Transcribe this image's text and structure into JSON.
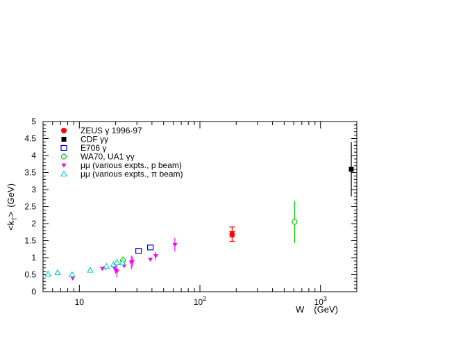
{
  "chart_data": {
    "type": "scatter",
    "xscale": "log",
    "xlim": [
      5,
      2000
    ],
    "ylim": [
      0,
      5
    ],
    "xlabel_main": "W",
    "xlabel_unit": "(GeV)",
    "ylabel": "<k_T> (GeV)",
    "ylabel_parts": {
      "open": "<k",
      "sub": "T",
      "close": ">",
      "unit": "(GeV)"
    },
    "x_ticks": [
      {
        "value": 10,
        "base": "10",
        "exp": ""
      },
      {
        "value": 100,
        "base": "10",
        "exp": "2"
      },
      {
        "value": 1000,
        "base": "10",
        "exp": "3"
      }
    ],
    "y_ticks": [
      "0",
      "0.5",
      "1",
      "1.5",
      "2",
      "2.5",
      "3",
      "3.5",
      "4",
      "4.5",
      "5"
    ],
    "grid": false,
    "legend_position": "top-left",
    "series": [
      {
        "name": "ZEUS γ 1996-97",
        "marker": "filled-circle",
        "color": "#ff0000",
        "points": [
          {
            "x": 185,
            "y": 1.69,
            "yerr_lo": 0.21,
            "yerr_hi": 0.21,
            "inner_lo": 0.08,
            "inner_hi": 0.08
          }
        ]
      },
      {
        "name": "CDF γγ",
        "marker": "filled-square",
        "color": "#000000",
        "points": [
          {
            "x": 1800,
            "y": 3.6,
            "yerr_lo": 0.8,
            "yerr_hi": 0.8
          }
        ]
      },
      {
        "name": "E706 γ",
        "marker": "open-square",
        "color": "#0000cc",
        "points": [
          {
            "x": 31,
            "y": 1.2,
            "yerr_lo": 0.08,
            "yerr_hi": 0.08
          },
          {
            "x": 38.8,
            "y": 1.3,
            "yerr_lo": 0.08,
            "yerr_hi": 0.08
          }
        ]
      },
      {
        "name": "WA70, UA1 γγ",
        "marker": "open-circle",
        "color": "#00cc00",
        "points": [
          {
            "x": 23,
            "y": 0.92,
            "yerr_lo": 0.12,
            "yerr_hi": 0.12
          },
          {
            "x": 610,
            "y": 2.05,
            "yerr_lo": 0.62,
            "yerr_hi": 0.62
          }
        ]
      },
      {
        "name": "μμ (various expts., p beam)",
        "marker": "filled-triangle-down",
        "color": "#ff00ff",
        "points": [
          {
            "x": 8.8,
            "y": 0.4,
            "yerr_lo": 0.06,
            "yerr_hi": 0.06
          },
          {
            "x": 15.5,
            "y": 0.68,
            "yerr_lo": 0.05,
            "yerr_hi": 0.05
          },
          {
            "x": 16.5,
            "y": 0.7,
            "yerr_lo": 0.05,
            "yerr_hi": 0.05
          },
          {
            "x": 19.4,
            "y": 0.72,
            "yerr_lo": 0.06,
            "yerr_hi": 0.06
          },
          {
            "x": 20,
            "y": 0.63,
            "yerr_lo": 0.1,
            "yerr_hi": 0.1
          },
          {
            "x": 20.5,
            "y": 0.6,
            "yerr_lo": 0.18,
            "yerr_hi": 0.18
          },
          {
            "x": 23.5,
            "y": 0.76,
            "yerr_lo": 0.05,
            "yerr_hi": 0.05
          },
          {
            "x": 27,
            "y": 0.86,
            "yerr_lo": 0.2,
            "yerr_hi": 0.2
          },
          {
            "x": 27.5,
            "y": 0.88,
            "yerr_lo": 0.15,
            "yerr_hi": 0.15
          },
          {
            "x": 38.8,
            "y": 0.95,
            "yerr_lo": 0.05,
            "yerr_hi": 0.05
          },
          {
            "x": 43,
            "y": 1.05,
            "yerr_lo": 0.12,
            "yerr_hi": 0.12
          },
          {
            "x": 62,
            "y": 1.38,
            "yerr_lo": 0.2,
            "yerr_hi": 0.2
          }
        ]
      },
      {
        "name": "μμ  (various expts., π beam)",
        "marker": "open-triangle-up",
        "color": "#00cccc",
        "points": [
          {
            "x": 5.5,
            "y": 0.52,
            "yerr_lo": 0.03,
            "yerr_hi": 0.03
          },
          {
            "x": 6.6,
            "y": 0.56,
            "yerr_lo": 0.03,
            "yerr_hi": 0.03
          },
          {
            "x": 8.7,
            "y": 0.5,
            "yerr_lo": 0.03,
            "yerr_hi": 0.03
          },
          {
            "x": 12.3,
            "y": 0.63,
            "yerr_lo": 0.03,
            "yerr_hi": 0.03
          },
          {
            "x": 16.8,
            "y": 0.74,
            "yerr_lo": 0.03,
            "yerr_hi": 0.03
          },
          {
            "x": 19.2,
            "y": 0.8,
            "yerr_lo": 0.03,
            "yerr_hi": 0.03
          },
          {
            "x": 20.5,
            "y": 0.86,
            "yerr_lo": 0.03,
            "yerr_hi": 0.03
          },
          {
            "x": 22.8,
            "y": 0.85,
            "yerr_lo": 0.03,
            "yerr_hi": 0.03
          }
        ]
      }
    ]
  }
}
